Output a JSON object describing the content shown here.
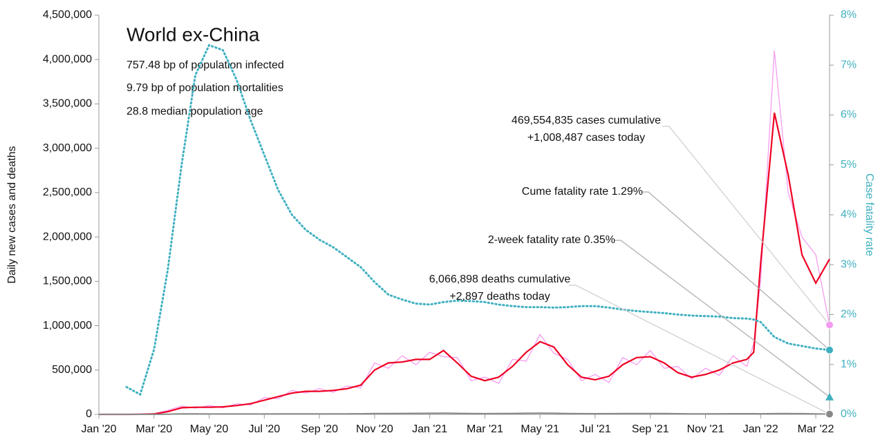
{
  "chart_data": {
    "type": "line",
    "title": "World ex-China",
    "subtitle_lines": [
      "757.48 bp of population infected",
      "9.79 bp of population mortalities",
      "28.8 median population age"
    ],
    "y_label": "Daily new cases and deaths",
    "y2_label": "Case fatality rate",
    "x": [
      0,
      0.5,
      1,
      1.5,
      2,
      2.5,
      3,
      3.5,
      4,
      4.5,
      5,
      5.5,
      6,
      6.5,
      7,
      7.5,
      8,
      8.5,
      9,
      9.5,
      10,
      10.5,
      11,
      11.5,
      12,
      12.5,
      13,
      13.5,
      14,
      14.5,
      15,
      15.5,
      16,
      16.5,
      17,
      17.5,
      18,
      18.5,
      19,
      19.5,
      20,
      20.5,
      21,
      21.5,
      22,
      22.5,
      23,
      23.5,
      23.75,
      24,
      24.5,
      25,
      25.5,
      26,
      26.5
    ],
    "xlim": [
      0,
      26.5
    ],
    "xticks": [
      {
        "value": 0,
        "label": "Jan '20"
      },
      {
        "value": 2,
        "label": "Mar '20"
      },
      {
        "value": 4,
        "label": "May '20"
      },
      {
        "value": 6,
        "label": "Jul '20"
      },
      {
        "value": 8,
        "label": "Sep '20"
      },
      {
        "value": 10,
        "label": "Nov '20"
      },
      {
        "value": 12,
        "label": "Jan '21"
      },
      {
        "value": 14,
        "label": "Mar '21"
      },
      {
        "value": 16,
        "label": "May '21"
      },
      {
        "value": 18,
        "label": "Jul '21"
      },
      {
        "value": 20,
        "label": "Sep '21"
      },
      {
        "value": 22,
        "label": "Nov '21"
      },
      {
        "value": 24,
        "label": "Jan '22"
      },
      {
        "value": 26,
        "label": "Mar '22"
      }
    ],
    "ylim": [
      0,
      4500000
    ],
    "yticks": [
      0,
      {
        "value": 500000,
        "label": "500,000"
      },
      {
        "value": 1000000,
        "label": "1,000,000"
      },
      {
        "value": 1500000,
        "label": "1,500,000"
      },
      {
        "value": 2000000,
        "label": "2,000,000"
      },
      {
        "value": 2500000,
        "label": "2,500,000"
      },
      {
        "value": 3000000,
        "label": "3,000,000"
      },
      {
        "value": 3500000,
        "label": "3,500,000"
      },
      {
        "value": 4000000,
        "label": "4,000,000"
      },
      {
        "value": 4500000,
        "label": "4,500,000"
      }
    ],
    "y2lim": [
      0,
      8
    ],
    "y2ticks": [
      {
        "value": 0,
        "label": "0%"
      },
      {
        "value": 1,
        "label": "1%"
      },
      {
        "value": 2,
        "label": "2%"
      },
      {
        "value": 3,
        "label": "3%"
      },
      {
        "value": 4,
        "label": "4%"
      },
      {
        "value": 5,
        "label": "5%"
      },
      {
        "value": 6,
        "label": "6%"
      },
      {
        "value": 7,
        "label": "7%"
      },
      {
        "value": 8,
        "label": "8%"
      }
    ],
    "series": [
      {
        "color": "#f49cf0",
        "values": [
          0,
          0,
          0,
          2000,
          8000,
          45000,
          95000,
          70000,
          100000,
          75000,
          120000,
          105000,
          190000,
          175000,
          270000,
          240000,
          290000,
          250000,
          320000,
          300000,
          580000,
          520000,
          660000,
          560000,
          700000,
          650000,
          640000,
          380000,
          420000,
          350000,
          620000,
          600000,
          900000,
          690000,
          620000,
          380000,
          450000,
          360000,
          640000,
          560000,
          720000,
          520000,
          540000,
          400000,
          520000,
          440000,
          660000,
          540000,
          800000,
          1500000,
          4100000,
          2500000,
          2000000,
          1800000,
          1008487
        ]
      },
      {
        "color": "#ee0022",
        "values": [
          0,
          0,
          0,
          1000,
          5000,
          30000,
          75000,
          80000,
          80000,
          85000,
          100000,
          120000,
          160000,
          200000,
          240000,
          260000,
          260000,
          270000,
          290000,
          330000,
          500000,
          580000,
          590000,
          620000,
          620000,
          720000,
          580000,
          430000,
          380000,
          420000,
          540000,
          700000,
          820000,
          760000,
          560000,
          420000,
          390000,
          430000,
          560000,
          640000,
          650000,
          580000,
          470000,
          420000,
          450000,
          500000,
          580000,
          620000,
          700000,
          1700000,
          3400000,
          2700000,
          1800000,
          1480000,
          1750000
        ]
      },
      {
        "color": "#888888",
        "values": [
          0,
          0,
          0,
          0,
          200,
          2000,
          6000,
          6000,
          5000,
          4500,
          4500,
          5000,
          5000,
          5500,
          5500,
          5500,
          5500,
          5500,
          6000,
          7000,
          9000,
          10000,
          11000,
          11500,
          12500,
          13000,
          12000,
          9500,
          8500,
          9000,
          11000,
          12500,
          13000,
          12500,
          10000,
          8500,
          8000,
          8500,
          9500,
          10000,
          10000,
          9000,
          7500,
          6500,
          6500,
          7000,
          7500,
          7500,
          7500,
          7000,
          8500,
          9500,
          8500,
          6500,
          2897
        ]
      },
      {
        "color": "#3fb0c0",
        "axis": "y2",
        "values": [
          null,
          null,
          0.55,
          0.4,
          1.3,
          2.9,
          5.0,
          6.8,
          7.4,
          7.3,
          6.7,
          5.9,
          5.2,
          4.5,
          4.0,
          3.7,
          3.5,
          3.35,
          3.15,
          2.95,
          2.65,
          2.4,
          2.3,
          2.22,
          2.2,
          2.25,
          2.28,
          2.27,
          2.25,
          2.2,
          2.17,
          2.15,
          2.15,
          2.14,
          2.15,
          2.17,
          2.17,
          2.14,
          2.1,
          2.07,
          2.05,
          2.03,
          2.0,
          1.98,
          1.97,
          1.96,
          1.93,
          1.92,
          1.9,
          1.85,
          1.55,
          1.42,
          1.37,
          1.32,
          1.29
        ]
      }
    ],
    "annotations": [
      {
        "lines": [
          "469,554,835 cases cumulative",
          "+1,008,487 cases today"
        ]
      },
      {
        "lines": [
          "Cume fatality rate 1.29%"
        ]
      },
      {
        "lines": [
          "2-week fatality rate 0.35%"
        ],
        "value": 0.35,
        "axis": "y2",
        "color": "#3fb0c0"
      },
      {
        "lines": [
          "6,066,898 deaths cumulative",
          "+2,897 deaths today"
        ]
      }
    ]
  }
}
